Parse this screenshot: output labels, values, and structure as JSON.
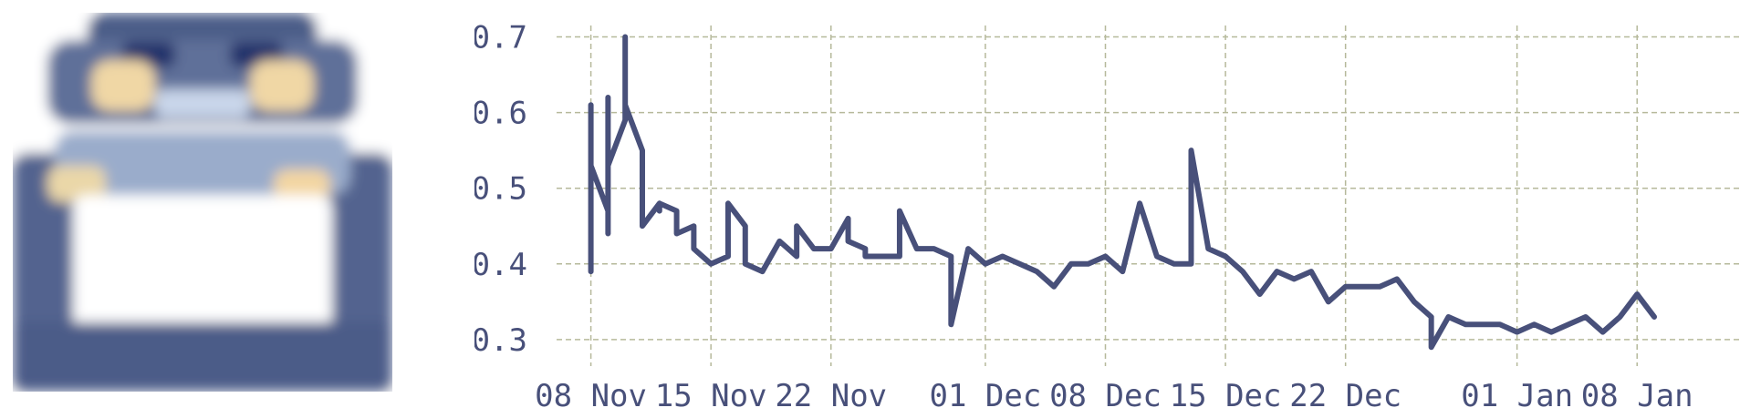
{
  "icon": {
    "name": "robot-icon",
    "colors": {
      "dark_navy": "#2b3a6b",
      "navy": "#4a5a82",
      "mid_blue": "#7e8fb6",
      "light_blue": "#c6d2e6",
      "cream": "#f2d7a3",
      "white": "#ffffff"
    }
  },
  "chart_data": {
    "type": "line",
    "title": "",
    "xlabel": "",
    "ylabel": "",
    "grid": true,
    "line_color": "#48507a",
    "grid_color": "#b6b99b",
    "ylim": [
      0.265,
      0.715
    ],
    "xlim": [
      "2023-11-06",
      "2024-01-14"
    ],
    "yticks": [
      0.3,
      0.4,
      0.5,
      0.6,
      0.7
    ],
    "ytick_labels": [
      "0.3",
      "0.4",
      "0.5",
      "0.6",
      "0.7"
    ],
    "xticks": [
      "2023-11-08",
      "2023-11-15",
      "2023-11-22",
      "2023-12-01",
      "2023-12-08",
      "2023-12-15",
      "2023-12-22",
      "2024-01-01",
      "2024-01-08"
    ],
    "xtick_labels": [
      "08 Nov",
      "15 Nov",
      "22 Nov",
      "01 Dec",
      "08 Dec",
      "15 Dec",
      "22 Dec",
      "01 Jan",
      "08 Jan"
    ],
    "series": [
      {
        "x": [
          "2023-11-08",
          "2023-11-08",
          "2023-11-08",
          "2023-11-08",
          "2023-11-08",
          "2023-11-08",
          "2023-11-09",
          "2023-11-09",
          "2023-11-09",
          "2023-11-09",
          "2023-11-10",
          "2023-11-10",
          "2023-11-10",
          "2023-11-10",
          "2023-11-10",
          "2023-11-11",
          "2023-11-11",
          "2023-11-11",
          "2023-11-12",
          "2023-11-12",
          "2023-11-12",
          "2023-11-13",
          "2023-11-13",
          "2023-11-13",
          "2023-11-14",
          "2023-11-14",
          "2023-11-15",
          "2023-11-16",
          "2023-11-16",
          "2023-11-17",
          "2023-11-17",
          "2023-11-18",
          "2023-11-19",
          "2023-11-20",
          "2023-11-20",
          "2023-11-21",
          "2023-11-22",
          "2023-11-23",
          "2023-11-23",
          "2023-11-24",
          "2023-11-24",
          "2023-11-25",
          "2023-11-26",
          "2023-11-26",
          "2023-11-27",
          "2023-11-28",
          "2023-11-29",
          "2023-11-29",
          "2023-11-30",
          "2023-12-01",
          "2023-12-02",
          "2023-12-03",
          "2023-12-04",
          "2023-12-05",
          "2023-12-06",
          "2023-12-07",
          "2023-12-08",
          "2023-12-09",
          "2023-12-10",
          "2023-12-11",
          "2023-12-12",
          "2023-12-13",
          "2023-12-13",
          "2023-12-14",
          "2023-12-15",
          "2023-12-15",
          "2023-12-16",
          "2023-12-17",
          "2023-12-18",
          "2023-12-19",
          "2023-12-20",
          "2023-12-21",
          "2023-12-22",
          "2023-12-23",
          "2023-12-24",
          "2023-12-25",
          "2023-12-26",
          "2023-12-27",
          "2023-12-27",
          "2023-12-28",
          "2023-12-29",
          "2023-12-30",
          "2023-12-31",
          "2024-01-01",
          "2024-01-02",
          "2024-01-03",
          "2024-01-04",
          "2024-01-05",
          "2024-01-06",
          "2024-01-07",
          "2024-01-08",
          "2024-01-09"
        ],
        "values": [
          0.58,
          0.61,
          0.51,
          0.48,
          0.39,
          0.53,
          0.47,
          0.44,
          0.62,
          0.53,
          0.59,
          0.6,
          0.59,
          0.7,
          0.61,
          0.55,
          0.5,
          0.45,
          0.48,
          0.47,
          0.48,
          0.47,
          0.46,
          0.44,
          0.45,
          0.42,
          0.4,
          0.41,
          0.48,
          0.45,
          0.4,
          0.39,
          0.43,
          0.41,
          0.45,
          0.42,
          0.42,
          0.46,
          0.43,
          0.42,
          0.41,
          0.41,
          0.41,
          0.47,
          0.42,
          0.42,
          0.41,
          0.32,
          0.42,
          0.4,
          0.41,
          0.4,
          0.39,
          0.37,
          0.4,
          0.4,
          0.41,
          0.39,
          0.48,
          0.41,
          0.4,
          0.4,
          0.55,
          0.42,
          0.41,
          0.41,
          0.39,
          0.36,
          0.39,
          0.38,
          0.39,
          0.35,
          0.37,
          0.37,
          0.37,
          0.38,
          0.35,
          0.33,
          0.29,
          0.33,
          0.32,
          0.32,
          0.32,
          0.31,
          0.32,
          0.31,
          0.32,
          0.33,
          0.31,
          0.33,
          0.36,
          0.33
        ]
      }
    ]
  }
}
